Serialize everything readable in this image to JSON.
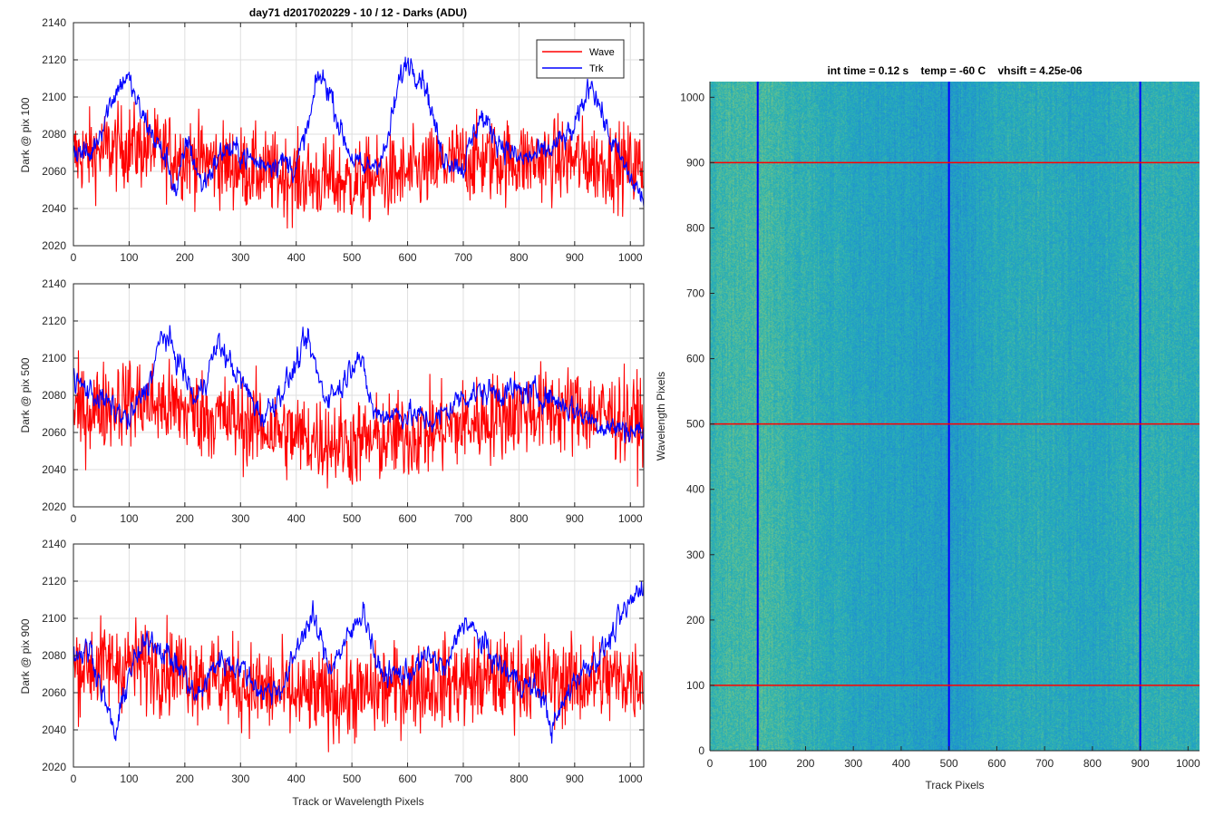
{
  "figure_title": "day71 d2017020229 - 10 / 12 - Darks (ADU)",
  "chart_data": [
    {
      "type": "line",
      "id": "pix100",
      "title": "day71 d2017020229 - 10 / 12 - Darks (ADU)",
      "ylabel": "Dark @ pix 100",
      "xlabel": "",
      "xlim": [
        0,
        1024
      ],
      "ylim": [
        2020,
        2140
      ],
      "xticks": [
        0,
        100,
        200,
        300,
        400,
        500,
        600,
        700,
        800,
        900,
        1000
      ],
      "yticks": [
        2020,
        2040,
        2060,
        2080,
        2100,
        2120,
        2140
      ],
      "grid": true,
      "legend": {
        "placement": "top-right",
        "entries": [
          "Wave",
          "Trk"
        ]
      },
      "series": [
        {
          "name": "Wave",
          "color": "#ff0000",
          "style": "noisy",
          "base": 2066,
          "spread": 14,
          "envelope": [
            [
              0,
              2068
            ],
            [
              100,
              2074
            ],
            [
              200,
              2068
            ],
            [
              300,
              2062
            ],
            [
              400,
              2056
            ],
            [
              500,
              2054
            ],
            [
              600,
              2058
            ],
            [
              700,
              2066
            ],
            [
              800,
              2066
            ],
            [
              900,
              2066
            ],
            [
              1024,
              2062
            ]
          ]
        },
        {
          "name": "Trk",
          "color": "#0000ff",
          "style": "smooth",
          "spread": 5,
          "envelope": [
            [
              0,
              2072
            ],
            [
              30,
              2068
            ],
            [
              70,
              2100
            ],
            [
              95,
              2112
            ],
            [
              120,
              2092
            ],
            [
              170,
              2064
            ],
            [
              185,
              2048
            ],
            [
              205,
              2078
            ],
            [
              230,
              2052
            ],
            [
              270,
              2072
            ],
            [
              300,
              2070
            ],
            [
              330,
              2064
            ],
            [
              370,
              2066
            ],
            [
              400,
              2062
            ],
            [
              425,
              2088
            ],
            [
              440,
              2112
            ],
            [
              460,
              2104
            ],
            [
              480,
              2082
            ],
            [
              500,
              2068
            ],
            [
              520,
              2060
            ],
            [
              560,
              2070
            ],
            [
              585,
              2108
            ],
            [
              600,
              2120
            ],
            [
              630,
              2110
            ],
            [
              660,
              2070
            ],
            [
              700,
              2062
            ],
            [
              730,
              2090
            ],
            [
              760,
              2078
            ],
            [
              800,
              2066
            ],
            [
              850,
              2070
            ],
            [
              900,
              2082
            ],
            [
              930,
              2110
            ],
            [
              960,
              2080
            ],
            [
              990,
              2062
            ],
            [
              1024,
              2044
            ]
          ]
        }
      ]
    },
    {
      "type": "line",
      "id": "pix500",
      "title": "",
      "ylabel": "Dark @ pix 500",
      "xlabel": "",
      "xlim": [
        0,
        1024
      ],
      "ylim": [
        2020,
        2140
      ],
      "xticks": [
        0,
        100,
        200,
        300,
        400,
        500,
        600,
        700,
        800,
        900,
        1000
      ],
      "yticks": [
        2020,
        2040,
        2060,
        2080,
        2100,
        2120,
        2140
      ],
      "grid": true,
      "series": [
        {
          "name": "Wave",
          "color": "#ff0000",
          "style": "noisy",
          "base": 2068,
          "spread": 15,
          "envelope": [
            [
              0,
              2070
            ],
            [
              100,
              2078
            ],
            [
              200,
              2072
            ],
            [
              300,
              2066
            ],
            [
              400,
              2058
            ],
            [
              500,
              2054
            ],
            [
              600,
              2058
            ],
            [
              700,
              2064
            ],
            [
              800,
              2072
            ],
            [
              900,
              2072
            ],
            [
              1024,
              2066
            ]
          ]
        },
        {
          "name": "Trk",
          "color": "#0000ff",
          "style": "smooth",
          "spread": 5,
          "envelope": [
            [
              0,
              2088
            ],
            [
              50,
              2078
            ],
            [
              100,
              2066
            ],
            [
              140,
              2090
            ],
            [
              160,
              2114
            ],
            [
              190,
              2098
            ],
            [
              220,
              2076
            ],
            [
              260,
              2108
            ],
            [
              300,
              2088
            ],
            [
              340,
              2068
            ],
            [
              390,
              2090
            ],
            [
              420,
              2110
            ],
            [
              450,
              2080
            ],
            [
              480,
              2084
            ],
            [
              510,
              2104
            ],
            [
              540,
              2070
            ],
            [
              600,
              2070
            ],
            [
              650,
              2066
            ],
            [
              700,
              2080
            ],
            [
              750,
              2082
            ],
            [
              800,
              2082
            ],
            [
              850,
              2080
            ],
            [
              900,
              2072
            ],
            [
              950,
              2064
            ],
            [
              1024,
              2060
            ]
          ]
        }
      ]
    },
    {
      "type": "line",
      "id": "pix900",
      "title": "",
      "ylabel": "Dark @ pix 900",
      "xlabel": "Track or Wavelength Pixels",
      "xlim": [
        0,
        1024
      ],
      "ylim": [
        2020,
        2140
      ],
      "xticks": [
        0,
        100,
        200,
        300,
        400,
        500,
        600,
        700,
        800,
        900,
        1000
      ],
      "yticks": [
        2020,
        2040,
        2060,
        2080,
        2100,
        2120,
        2140
      ],
      "grid": true,
      "series": [
        {
          "name": "Wave",
          "color": "#ff0000",
          "style": "noisy",
          "base": 2068,
          "spread": 15,
          "envelope": [
            [
              0,
              2074
            ],
            [
              100,
              2076
            ],
            [
              200,
              2072
            ],
            [
              300,
              2064
            ],
            [
              400,
              2058
            ],
            [
              500,
              2058
            ],
            [
              600,
              2064
            ],
            [
              700,
              2066
            ],
            [
              800,
              2068
            ],
            [
              900,
              2066
            ],
            [
              1024,
              2068
            ]
          ]
        },
        {
          "name": "Trk",
          "color": "#0000ff",
          "style": "smooth",
          "spread": 5,
          "envelope": [
            [
              0,
              2080
            ],
            [
              30,
              2084
            ],
            [
              60,
              2052
            ],
            [
              75,
              2036
            ],
            [
              100,
              2072
            ],
            [
              140,
              2090
            ],
            [
              200,
              2070
            ],
            [
              220,
              2056
            ],
            [
              260,
              2078
            ],
            [
              300,
              2074
            ],
            [
              340,
              2060
            ],
            [
              380,
              2064
            ],
            [
              410,
              2092
            ],
            [
              430,
              2100
            ],
            [
              460,
              2074
            ],
            [
              500,
              2092
            ],
            [
              520,
              2106
            ],
            [
              550,
              2070
            ],
            [
              600,
              2070
            ],
            [
              640,
              2080
            ],
            [
              670,
              2072
            ],
            [
              700,
              2100
            ],
            [
              720,
              2092
            ],
            [
              760,
              2076
            ],
            [
              800,
              2066
            ],
            [
              840,
              2060
            ],
            [
              860,
              2040
            ],
            [
              900,
              2068
            ],
            [
              950,
              2082
            ],
            [
              1000,
              2108
            ],
            [
              1024,
              2120
            ]
          ]
        }
      ]
    },
    {
      "type": "heatmap",
      "id": "dark-image",
      "title": "int time = 0.12 s    temp = -60 C    vhsift = 4.25e-06",
      "xlabel": "Track Pixels",
      "ylabel": "Wavelength Pixels",
      "xlim": [
        0,
        1024
      ],
      "ylim": [
        0,
        1024
      ],
      "xticks": [
        0,
        100,
        200,
        300,
        400,
        500,
        600,
        700,
        800,
        900,
        1000
      ],
      "yticks": [
        0,
        100,
        200,
        300,
        400,
        500,
        600,
        700,
        800,
        900,
        1000
      ],
      "colormap": [
        "#1e6fd0",
        "#1f94cf",
        "#29b1b4",
        "#6cc28a",
        "#b6c75e"
      ],
      "track_intensity": [
        [
          0,
          0.55
        ],
        [
          100,
          0.62
        ],
        [
          200,
          0.5
        ],
        [
          300,
          0.42
        ],
        [
          400,
          0.38
        ],
        [
          500,
          0.3
        ],
        [
          600,
          0.44
        ],
        [
          700,
          0.46
        ],
        [
          800,
          0.4
        ],
        [
          900,
          0.5
        ],
        [
          1024,
          0.48
        ]
      ],
      "marker_columns": {
        "color": "#0000ff",
        "values": [
          100,
          500,
          900
        ]
      },
      "marker_rows": {
        "color": "#ff0000",
        "values": [
          100,
          500,
          900
        ]
      }
    }
  ]
}
